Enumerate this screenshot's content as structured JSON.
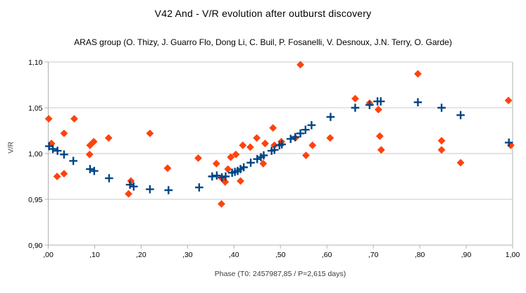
{
  "chart": {
    "title": "V42 And - V/R evolution after outburst discovery",
    "subtitle": "ARAS group (O. Thizy, J. Guarro Flo, Dong Li, C. Buil, P. Fosanelli, V. Desnoux, J.N. Terry, O. Garde)",
    "xlabel": "Phase (T0: 2457987,85 / P=2,615 days)",
    "ylabel": "V/R"
  },
  "chart_data": {
    "type": "scatter",
    "title": "V42 And - V/R evolution after outburst discovery",
    "subtitle": "ARAS group (O. Thizy, J. Guarro Flo, Dong Li, C. Buil, P. Fosanelli, V. Desnoux, J.N. Terry, O. Garde)",
    "xlabel": "Phase (T0: 2457987,85 / P=2,615 days)",
    "ylabel": "V/R",
    "xlim": [
      0.0,
      1.0
    ],
    "ylim": [
      0.9,
      1.1
    ],
    "x_tick_values": [
      0.0,
      0.1,
      0.2,
      0.3,
      0.4,
      0.5,
      0.6,
      0.7,
      0.8,
      0.9,
      1.0
    ],
    "x_tick_labels": [
      ",00",
      ",10",
      ",20",
      ",30",
      ",40",
      ",50",
      ",60",
      ",70",
      ",80",
      ",90",
      "1,00"
    ],
    "y_tick_values": [
      0.9,
      0.95,
      1.0,
      1.05,
      1.1
    ],
    "y_tick_labels": [
      "0,90",
      "0,95",
      "1,00",
      "1,05",
      "1,10"
    ],
    "grid": "horizontal",
    "legend_position": "none",
    "colors": {
      "grid": "#c9c9c9",
      "axis": "#b0b0b0",
      "tick_text": "#000000"
    },
    "series": [
      {
        "name": "diamond-series",
        "marker": "diamond",
        "color": "#ff420e",
        "points": [
          [
            0.001,
            1.038
          ],
          [
            0.007,
            1.011
          ],
          [
            0.019,
            0.975
          ],
          [
            0.034,
            0.978
          ],
          [
            0.034,
            1.022
          ],
          [
            0.056,
            1.038
          ],
          [
            0.089,
            0.999
          ],
          [
            0.09,
            1.009
          ],
          [
            0.098,
            1.013
          ],
          [
            0.13,
            1.017
          ],
          [
            0.173,
            0.956
          ],
          [
            0.178,
            0.97
          ],
          [
            0.219,
            1.022
          ],
          [
            0.257,
            0.984
          ],
          [
            0.323,
            0.995
          ],
          [
            0.362,
            0.989
          ],
          [
            0.373,
            0.945
          ],
          [
            0.374,
            0.973
          ],
          [
            0.381,
            0.969
          ],
          [
            0.387,
            0.983
          ],
          [
            0.393,
            0.996
          ],
          [
            0.404,
            0.999
          ],
          [
            0.414,
            0.97
          ],
          [
            0.419,
            1.009
          ],
          [
            0.435,
            1.007
          ],
          [
            0.449,
            1.017
          ],
          [
            0.463,
            0.989
          ],
          [
            0.467,
            1.011
          ],
          [
            0.484,
            1.028
          ],
          [
            0.487,
            1.009
          ],
          [
            0.502,
            1.013
          ],
          [
            0.532,
            1.017
          ],
          [
            0.543,
            1.097
          ],
          [
            0.555,
            0.998
          ],
          [
            0.569,
            1.009
          ],
          [
            0.607,
            1.017
          ],
          [
            0.661,
            1.06
          ],
          [
            0.692,
            1.055
          ],
          [
            0.711,
            1.048
          ],
          [
            0.714,
            1.019
          ],
          [
            0.717,
            1.004
          ],
          [
            0.796,
            1.087
          ],
          [
            0.847,
            1.014
          ],
          [
            0.847,
            1.004
          ],
          [
            0.888,
            0.99
          ],
          [
            0.991,
            1.058
          ],
          [
            0.996,
            1.009
          ]
        ]
      },
      {
        "name": "plus-series",
        "marker": "plus",
        "color": "#004586",
        "points": [
          [
            0.002,
            1.008
          ],
          [
            0.01,
            1.005
          ],
          [
            0.02,
            1.003
          ],
          [
            0.034,
            0.999
          ],
          [
            0.054,
            0.992
          ],
          [
            0.09,
            0.983
          ],
          [
            0.099,
            0.981
          ],
          [
            0.131,
            0.973
          ],
          [
            0.176,
            0.966
          ],
          [
            0.184,
            0.964
          ],
          [
            0.219,
            0.961
          ],
          [
            0.259,
            0.96
          ],
          [
            0.325,
            0.963
          ],
          [
            0.353,
            0.975
          ],
          [
            0.363,
            0.976
          ],
          [
            0.374,
            0.974
          ],
          [
            0.382,
            0.975
          ],
          [
            0.396,
            0.979
          ],
          [
            0.402,
            0.98
          ],
          [
            0.408,
            0.981
          ],
          [
            0.414,
            0.983
          ],
          [
            0.421,
            0.985
          ],
          [
            0.436,
            0.99
          ],
          [
            0.45,
            0.994
          ],
          [
            0.458,
            0.996
          ],
          [
            0.464,
            0.998
          ],
          [
            0.481,
            1.003
          ],
          [
            0.487,
            1.004
          ],
          [
            0.498,
            1.009
          ],
          [
            0.503,
            1.01
          ],
          [
            0.522,
            1.016
          ],
          [
            0.532,
            1.018
          ],
          [
            0.543,
            1.022
          ],
          [
            0.554,
            1.026
          ],
          [
            0.567,
            1.031
          ],
          [
            0.608,
            1.04
          ],
          [
            0.661,
            1.05
          ],
          [
            0.692,
            1.053
          ],
          [
            0.709,
            1.057
          ],
          [
            0.716,
            1.057
          ],
          [
            0.796,
            1.056
          ],
          [
            0.847,
            1.05
          ],
          [
            0.888,
            1.042
          ],
          [
            0.992,
            1.012
          ]
        ]
      }
    ]
  }
}
